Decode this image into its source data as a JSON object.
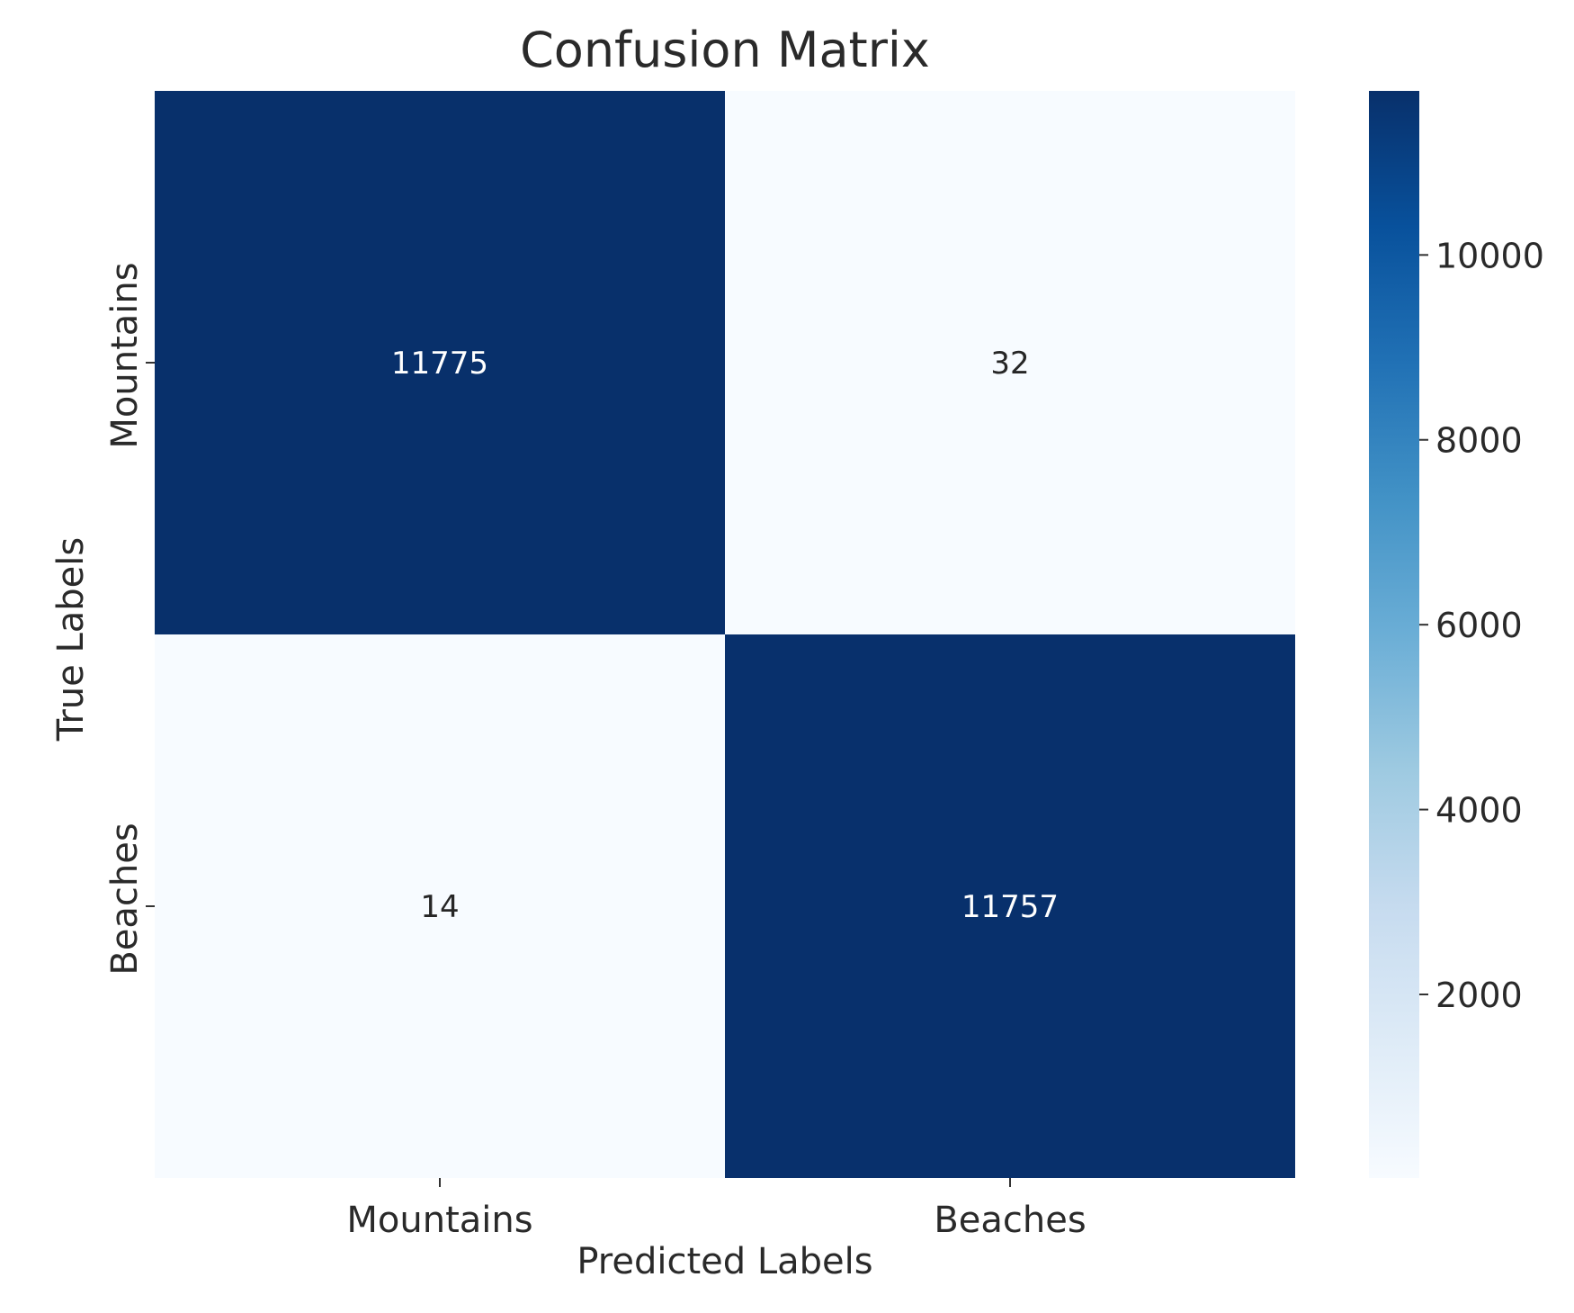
{
  "chart_data": {
    "type": "heatmap",
    "title": "Confusion Matrix",
    "xlabel": "Predicted Labels",
    "ylabel": "True Labels",
    "x_categories": [
      "Mountains",
      "Beaches"
    ],
    "y_categories": [
      "Mountains",
      "Beaches"
    ],
    "matrix": [
      [
        11775,
        32
      ],
      [
        14,
        11757
      ]
    ],
    "colormap": "Blues",
    "colorbar": {
      "range": [
        14,
        11775
      ],
      "ticks": [
        2000,
        4000,
        6000,
        8000,
        10000
      ],
      "tick_labels": [
        "2000",
        "4000",
        "6000",
        "8000",
        "10000"
      ]
    },
    "grid": false,
    "colors": {
      "low": "#f7fbff",
      "high": "#08306b"
    }
  }
}
